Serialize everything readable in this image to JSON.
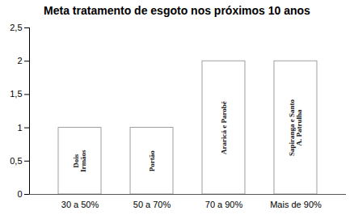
{
  "chart_data": {
    "type": "bar",
    "title": "Meta tratamento de esgoto nos próximos 10 anos",
    "categories": [
      "30 a 50%",
      "50 a 70%",
      "70 a 90%",
      "Mais de 90%"
    ],
    "values": [
      1,
      1,
      2,
      2
    ],
    "annotations": [
      "Dois\nIrmãos",
      "Portão",
      "Araricá e Parobé",
      "Sapiranga e Santo\nA. Patrulha"
    ],
    "color": "#ffffff",
    "ylim": [
      0,
      2.5
    ],
    "yticks": [
      0,
      {
        "value": 0.5,
        "label": "0,5"
      },
      1,
      {
        "value": 1.5,
        "label": "1,5"
      },
      2,
      {
        "value": 2.5,
        "label": "2,5"
      }
    ],
    "grid": false
  }
}
